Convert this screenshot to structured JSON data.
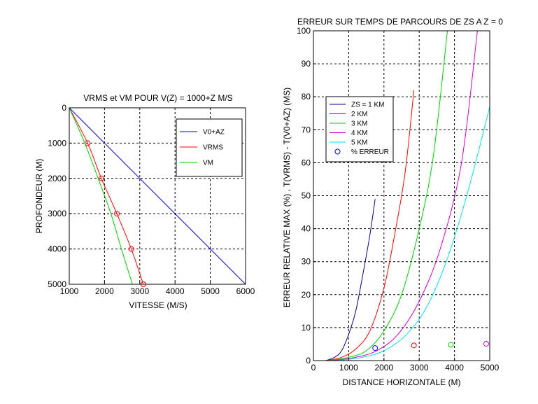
{
  "chart_data": [
    {
      "type": "line",
      "title": "VRMS et VM POUR V(Z) = 1000+Z M/S",
      "xlabel": "VITESSE (M/S)",
      "ylabel": "PROFONDEUR (M)",
      "xlim": [
        1000,
        6000
      ],
      "ylim": [
        5000,
        0
      ],
      "y_reversed": true,
      "grid": true,
      "legend_position": "top-right",
      "xticks": [
        "1000",
        "2000",
        "3000",
        "4000",
        "5000",
        "6000"
      ],
      "yticks": [
        "0",
        "1000",
        "2000",
        "3000",
        "4000",
        "5000"
      ],
      "series": [
        {
          "name": "V0+AZ",
          "color": "#0000ff",
          "x": [
            1000,
            6000
          ],
          "y": [
            0,
            5000
          ]
        },
        {
          "name": "VRMS",
          "color": "#ff0000",
          "x": [
            1000,
            1520,
            1910,
            2350,
            2760,
            3100
          ],
          "y": [
            0,
            1000,
            2000,
            3000,
            4000,
            5000
          ],
          "markers": "circle"
        },
        {
          "name": "VM",
          "color": "#00cc00",
          "x": [
            1000,
            1440,
            1820,
            2180,
            2480,
            2790
          ],
          "y": [
            0,
            1000,
            2000,
            3000,
            4000,
            5000
          ]
        }
      ]
    },
    {
      "type": "line",
      "title": "ERREUR SUR TEMPS DE PARCOURS DE ZS A Z = 0",
      "xlabel": "DISTANCE HORIZONTALE (M)",
      "ylabel": "ERREUR RELATIVE MAX (%) ,   T(VRMS) - T(V0+AZ) (MS)",
      "xlim": [
        0,
        5000
      ],
      "ylim": [
        0,
        100
      ],
      "grid": true,
      "legend_position": "top-left",
      "xticks": [
        "0",
        "1000",
        "2000",
        "3000",
        "4000",
        "5000"
      ],
      "yticks": [
        "0",
        "10",
        "20",
        "30",
        "40",
        "50",
        "60",
        "70",
        "80",
        "90",
        "100"
      ],
      "series": [
        {
          "name": "ZS = 1 KM",
          "color": "#00008b",
          "x": [
            350,
            600,
            800,
            1000,
            1200,
            1400,
            1600,
            1750
          ],
          "y": [
            0,
            1,
            3,
            8,
            15,
            26,
            38,
            49
          ]
        },
        {
          "name": "2 KM",
          "color": "#ff0000",
          "x": [
            350,
            800,
            1200,
            1600,
            2000,
            2300,
            2600,
            2850
          ],
          "y": [
            0,
            1,
            3.5,
            9,
            22,
            38,
            57,
            82
          ]
        },
        {
          "name": "3 KM",
          "color": "#00cc00",
          "x": [
            450,
            1000,
            1500,
            2000,
            2500,
            3000,
            3400,
            3800
          ],
          "y": [
            0,
            1,
            3,
            9,
            20,
            40,
            62,
            100
          ]
        },
        {
          "name": "4 KM",
          "color": "#cc00cc",
          "x": [
            550,
            1200,
            1800,
            2400,
            3000,
            3600,
            4200,
            4650
          ],
          "y": [
            0,
            1,
            3,
            8,
            18,
            34,
            60,
            100
          ]
        },
        {
          "name": "5 KM",
          "color": "#00e0e0",
          "x": [
            650,
            1400,
            2000,
            2600,
            3200,
            3800,
            4400,
            5000
          ],
          "y": [
            0,
            1,
            3,
            7.5,
            16,
            31,
            52,
            77
          ]
        }
      ],
      "markers_series": {
        "name": "% ERREUR",
        "marker": "circle",
        "points": [
          {
            "x": 1750,
            "y": 3.8,
            "color": "#0000ff"
          },
          {
            "x": 2850,
            "y": 4.6,
            "color": "#ff0000"
          },
          {
            "x": 3900,
            "y": 4.8,
            "color": "#00cc00"
          },
          {
            "x": 4900,
            "y": 5.1,
            "color": "#cc00cc"
          }
        ]
      }
    }
  ]
}
